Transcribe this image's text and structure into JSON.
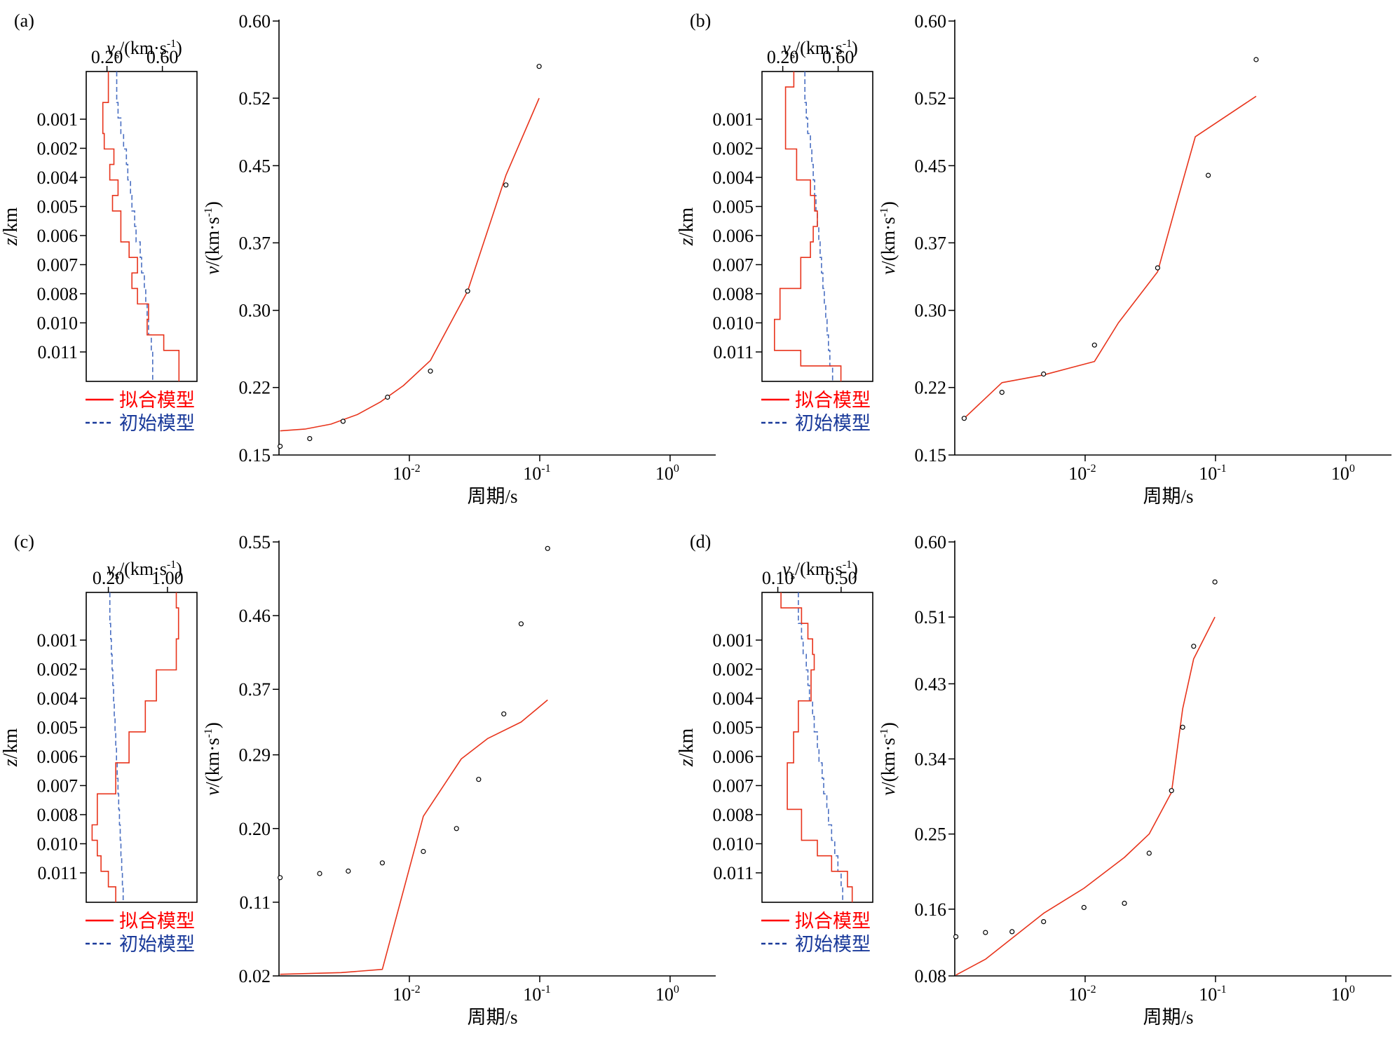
{
  "colors": {
    "fit": "#e8341c",
    "initial": "#4a6fc2",
    "axis": "#000000",
    "points": "#000000"
  },
  "legend": {
    "fit_label": "拟合模型",
    "initial_label": "初始模型",
    "fit_color": "#ff0000",
    "initial_color": "#1a3a9a"
  },
  "chart_data": [
    {
      "panel_label": "(a)",
      "profile": {
        "type": "line",
        "xlabel_main": "v",
        "xlabel_sub": "s",
        "xlabel_unit": "/(km·s",
        "xlabel_exp": "-1",
        "xlabel_close": ")",
        "ylabel_main": "z",
        "ylabel_unit": "/km",
        "xlim": [
          0.05,
          0.85
        ],
        "xticks": [
          0.2,
          0.6
        ],
        "xtick_labels": [
          "0.20",
          "0.60"
        ],
        "yticks": [
          1,
          2,
          3,
          4,
          5,
          6,
          7,
          8,
          9
        ],
        "ytick_labels": [
          "0.001",
          "0.002",
          "0.004",
          "0.005",
          "0.006",
          "0.007",
          "0.008",
          "0.010",
          "0.011"
        ],
        "fit_steps": [
          0.21,
          0.21,
          0.17,
          0.17,
          0.18,
          0.25,
          0.22,
          0.28,
          0.24,
          0.3,
          0.3,
          0.36,
          0.42,
          0.38,
          0.42,
          0.5,
          0.49,
          0.61,
          0.72,
          0.72
        ],
        "initial_steps": [
          0.27,
          0.27,
          0.28,
          0.3,
          0.32,
          0.34,
          0.35,
          0.37,
          0.38,
          0.4,
          0.41,
          0.44,
          0.45,
          0.47,
          0.48,
          0.49,
          0.5,
          0.52,
          0.53,
          0.53
        ]
      },
      "dispersion": {
        "type": "line",
        "xlabel": "周期/s",
        "ylabel_main": "v",
        "ylabel_unit": "/(km·s",
        "ylabel_exp": "-1",
        "ylabel_close": ")",
        "xlim_log10": [
          -3.0,
          0.35
        ],
        "xtick_log10": [
          -2,
          -1,
          0
        ],
        "xtick_bases": [
          "10",
          "10",
          "10"
        ],
        "xtick_exps": [
          "-2",
          "-1",
          "0"
        ],
        "ylim": [
          0.15,
          0.6
        ],
        "yticks": [
          0.15,
          0.22,
          0.3,
          0.37,
          0.45,
          0.52,
          0.6
        ],
        "ytick_labels": [
          "0.15",
          "0.22",
          "0.30",
          "0.37",
          "0.45",
          "0.52",
          "0.60"
        ],
        "observed": {
          "period": [
            0.00102,
            0.00172,
            0.0031,
            0.0068,
            0.0145,
            0.028,
            0.055,
            0.099
          ],
          "velocity": [
            0.159,
            0.167,
            0.185,
            0.21,
            0.237,
            0.32,
            0.43,
            0.553
          ]
        },
        "fitted": {
          "period": [
            0.00102,
            0.0016,
            0.0025,
            0.004,
            0.006,
            0.009,
            0.0145,
            0.028,
            0.055,
            0.099
          ],
          "velocity": [
            0.175,
            0.177,
            0.182,
            0.192,
            0.205,
            0.222,
            0.248,
            0.32,
            0.44,
            0.52
          ]
        }
      }
    },
    {
      "panel_label": "(b)",
      "profile": {
        "type": "line",
        "xlabel_main": "v",
        "xlabel_sub": "s",
        "xlabel_unit": "/(km·s",
        "xlabel_exp": "-1",
        "xlabel_close": ")",
        "ylabel_main": "z",
        "ylabel_unit": "/km",
        "xlim": [
          0.05,
          0.85
        ],
        "xticks": [
          0.2,
          0.6
        ],
        "xtick_labels": [
          "0.20",
          "0.60"
        ],
        "yticks": [
          1,
          2,
          3,
          4,
          5,
          6,
          7,
          8,
          9
        ],
        "ytick_labels": [
          "0.001",
          "0.002",
          "0.004",
          "0.005",
          "0.006",
          "0.007",
          "0.008",
          "0.010",
          "0.011"
        ],
        "fit_steps": [
          0.28,
          0.22,
          0.22,
          0.22,
          0.22,
          0.3,
          0.3,
          0.4,
          0.43,
          0.45,
          0.42,
          0.4,
          0.33,
          0.33,
          0.18,
          0.18,
          0.14,
          0.14,
          0.33,
          0.62
        ],
        "initial_steps": [
          0.36,
          0.36,
          0.37,
          0.38,
          0.4,
          0.41,
          0.42,
          0.43,
          0.44,
          0.45,
          0.46,
          0.47,
          0.48,
          0.49,
          0.5,
          0.51,
          0.52,
          0.53,
          0.54,
          0.56
        ]
      },
      "dispersion": {
        "type": "line",
        "xlabel": "周期/s",
        "ylabel_main": "v",
        "ylabel_unit": "/(km·s",
        "ylabel_exp": "-1",
        "ylabel_close": ")",
        "xlim_log10": [
          -3.0,
          0.35
        ],
        "xtick_log10": [
          -2,
          -1,
          0
        ],
        "xtick_bases": [
          "10",
          "10",
          "10"
        ],
        "xtick_exps": [
          "-2",
          "-1",
          "0"
        ],
        "ylim": [
          0.15,
          0.6
        ],
        "yticks": [
          0.15,
          0.22,
          0.3,
          0.37,
          0.45,
          0.52,
          0.6
        ],
        "ytick_labels": [
          "0.15",
          "0.22",
          "0.30",
          "0.37",
          "0.45",
          "0.52",
          "0.60"
        ],
        "observed": {
          "period": [
            0.00118,
            0.0023,
            0.0048,
            0.0118,
            0.036,
            0.088,
            0.205
          ],
          "velocity": [
            0.188,
            0.215,
            0.234,
            0.264,
            0.344,
            0.44,
            0.56
          ]
        },
        "fitted": {
          "period": [
            0.00118,
            0.0023,
            0.0048,
            0.0118,
            0.018,
            0.036,
            0.05,
            0.07,
            0.205
          ],
          "velocity": [
            0.188,
            0.225,
            0.233,
            0.247,
            0.287,
            0.34,
            0.41,
            0.48,
            0.522
          ]
        }
      }
    },
    {
      "panel_label": "(c)",
      "profile": {
        "type": "line",
        "xlabel_main": "v",
        "xlabel_sub": "s",
        "xlabel_unit": "/(km·s",
        "xlabel_exp": "-1",
        "xlabel_close": ")",
        "ylabel_main": "z",
        "ylabel_unit": "/km",
        "xlim": [
          -0.1,
          1.4
        ],
        "xticks": [
          0.2,
          1.0
        ],
        "xtick_labels": [
          "0.20",
          "1.00"
        ],
        "yticks": [
          1,
          2,
          3,
          4,
          5,
          6,
          7,
          8,
          9
        ],
        "ytick_labels": [
          "0.001",
          "0.002",
          "0.004",
          "0.005",
          "0.006",
          "0.007",
          "0.008",
          "0.010",
          "0.011"
        ],
        "fit_steps": [
          1.12,
          1.15,
          1.15,
          1.12,
          1.12,
          0.85,
          0.85,
          0.7,
          0.7,
          0.48,
          0.48,
          0.3,
          0.3,
          0.05,
          0.05,
          -0.02,
          0.05,
          0.1,
          0.2,
          0.3
        ],
        "initial_steps": [
          0.22,
          0.22,
          0.23,
          0.24,
          0.25,
          0.26,
          0.27,
          0.28,
          0.29,
          0.3,
          0.31,
          0.32,
          0.33,
          0.34,
          0.35,
          0.36,
          0.37,
          0.38,
          0.39,
          0.4
        ]
      },
      "dispersion": {
        "type": "line",
        "xlabel": "周期/s",
        "ylabel_main": "v",
        "ylabel_unit": "/(km·s",
        "ylabel_exp": "-1",
        "ylabel_close": ")",
        "xlim_log10": [
          -3.0,
          0.35
        ],
        "xtick_log10": [
          -2,
          -1,
          0
        ],
        "xtick_bases": [
          "10",
          "10",
          "10"
        ],
        "xtick_exps": [
          "-2",
          "-1",
          "0"
        ],
        "ylim": [
          0.02,
          0.55
        ],
        "yticks": [
          0.02,
          0.11,
          0.2,
          0.29,
          0.37,
          0.46,
          0.55
        ],
        "ytick_labels": [
          "0.02",
          "0.11",
          "0.20",
          "0.29",
          "0.37",
          "0.46",
          "0.55"
        ],
        "observed": {
          "period": [
            0.00102,
            0.00205,
            0.0034,
            0.0062,
            0.0128,
            0.023,
            0.034,
            0.053,
            0.072,
            0.115
          ],
          "velocity": [
            0.14,
            0.145,
            0.148,
            0.158,
            0.172,
            0.2,
            0.26,
            0.34,
            0.45,
            0.542
          ]
        },
        "fitted": {
          "period": [
            0.00102,
            0.003,
            0.0062,
            0.0128,
            0.025,
            0.04,
            0.072,
            0.115
          ],
          "velocity": [
            0.022,
            0.024,
            0.028,
            0.215,
            0.285,
            0.31,
            0.33,
            0.357
          ]
        }
      }
    },
    {
      "panel_label": "(d)",
      "profile": {
        "type": "line",
        "xlabel_main": "v",
        "xlabel_sub": "s",
        "xlabel_unit": "/(km·s",
        "xlabel_exp": "-1",
        "xlabel_close": ")",
        "ylabel_main": "z",
        "ylabel_unit": "/km",
        "xlim": [
          0.0,
          0.7
        ],
        "xticks": [
          0.1,
          0.5
        ],
        "xtick_labels": [
          "0.10",
          "0.50"
        ],
        "yticks": [
          1,
          2,
          3,
          4,
          5,
          6,
          7,
          8,
          9
        ],
        "ytick_labels": [
          "0.001",
          "0.002",
          "0.004",
          "0.005",
          "0.006",
          "0.007",
          "0.008",
          "0.010",
          "0.011"
        ],
        "fit_steps": [
          0.12,
          0.25,
          0.29,
          0.32,
          0.33,
          0.31,
          0.31,
          0.23,
          0.23,
          0.2,
          0.2,
          0.16,
          0.16,
          0.16,
          0.25,
          0.25,
          0.35,
          0.44,
          0.54,
          0.57
        ],
        "initial_steps": [
          0.23,
          0.23,
          0.25,
          0.26,
          0.28,
          0.29,
          0.3,
          0.32,
          0.33,
          0.35,
          0.36,
          0.38,
          0.39,
          0.41,
          0.42,
          0.44,
          0.46,
          0.48,
          0.5,
          0.51
        ]
      },
      "dispersion": {
        "type": "line",
        "xlabel": "周期/s",
        "ylabel_main": "v",
        "ylabel_unit": "/(km·s",
        "ylabel_exp": "-1",
        "ylabel_close": ")",
        "xlim_log10": [
          -3.0,
          0.35
        ],
        "xtick_log10": [
          -2,
          -1,
          0
        ],
        "xtick_bases": [
          "10",
          "10",
          "10"
        ],
        "xtick_exps": [
          "-2",
          "-1",
          "0"
        ],
        "ylim": [
          0.08,
          0.6
        ],
        "yticks": [
          0.08,
          0.16,
          0.25,
          0.34,
          0.43,
          0.51,
          0.6
        ],
        "ytick_labels": [
          "0.08",
          "0.16",
          "0.25",
          "0.34",
          "0.43",
          "0.51",
          "0.60"
        ],
        "observed": {
          "period": [
            0.00102,
            0.00172,
            0.00275,
            0.0048,
            0.0098,
            0.02,
            0.031,
            0.046,
            0.056,
            0.068,
            0.099
          ],
          "velocity": [
            0.127,
            0.132,
            0.133,
            0.145,
            0.162,
            0.167,
            0.227,
            0.302,
            0.378,
            0.475,
            0.552
          ]
        },
        "fitted": {
          "period": [
            0.00102,
            0.00172,
            0.0048,
            0.0098,
            0.02,
            0.031,
            0.046,
            0.056,
            0.068,
            0.099
          ],
          "velocity": [
            0.081,
            0.1,
            0.155,
            0.185,
            0.222,
            0.25,
            0.3,
            0.4,
            0.46,
            0.51
          ]
        }
      }
    }
  ]
}
